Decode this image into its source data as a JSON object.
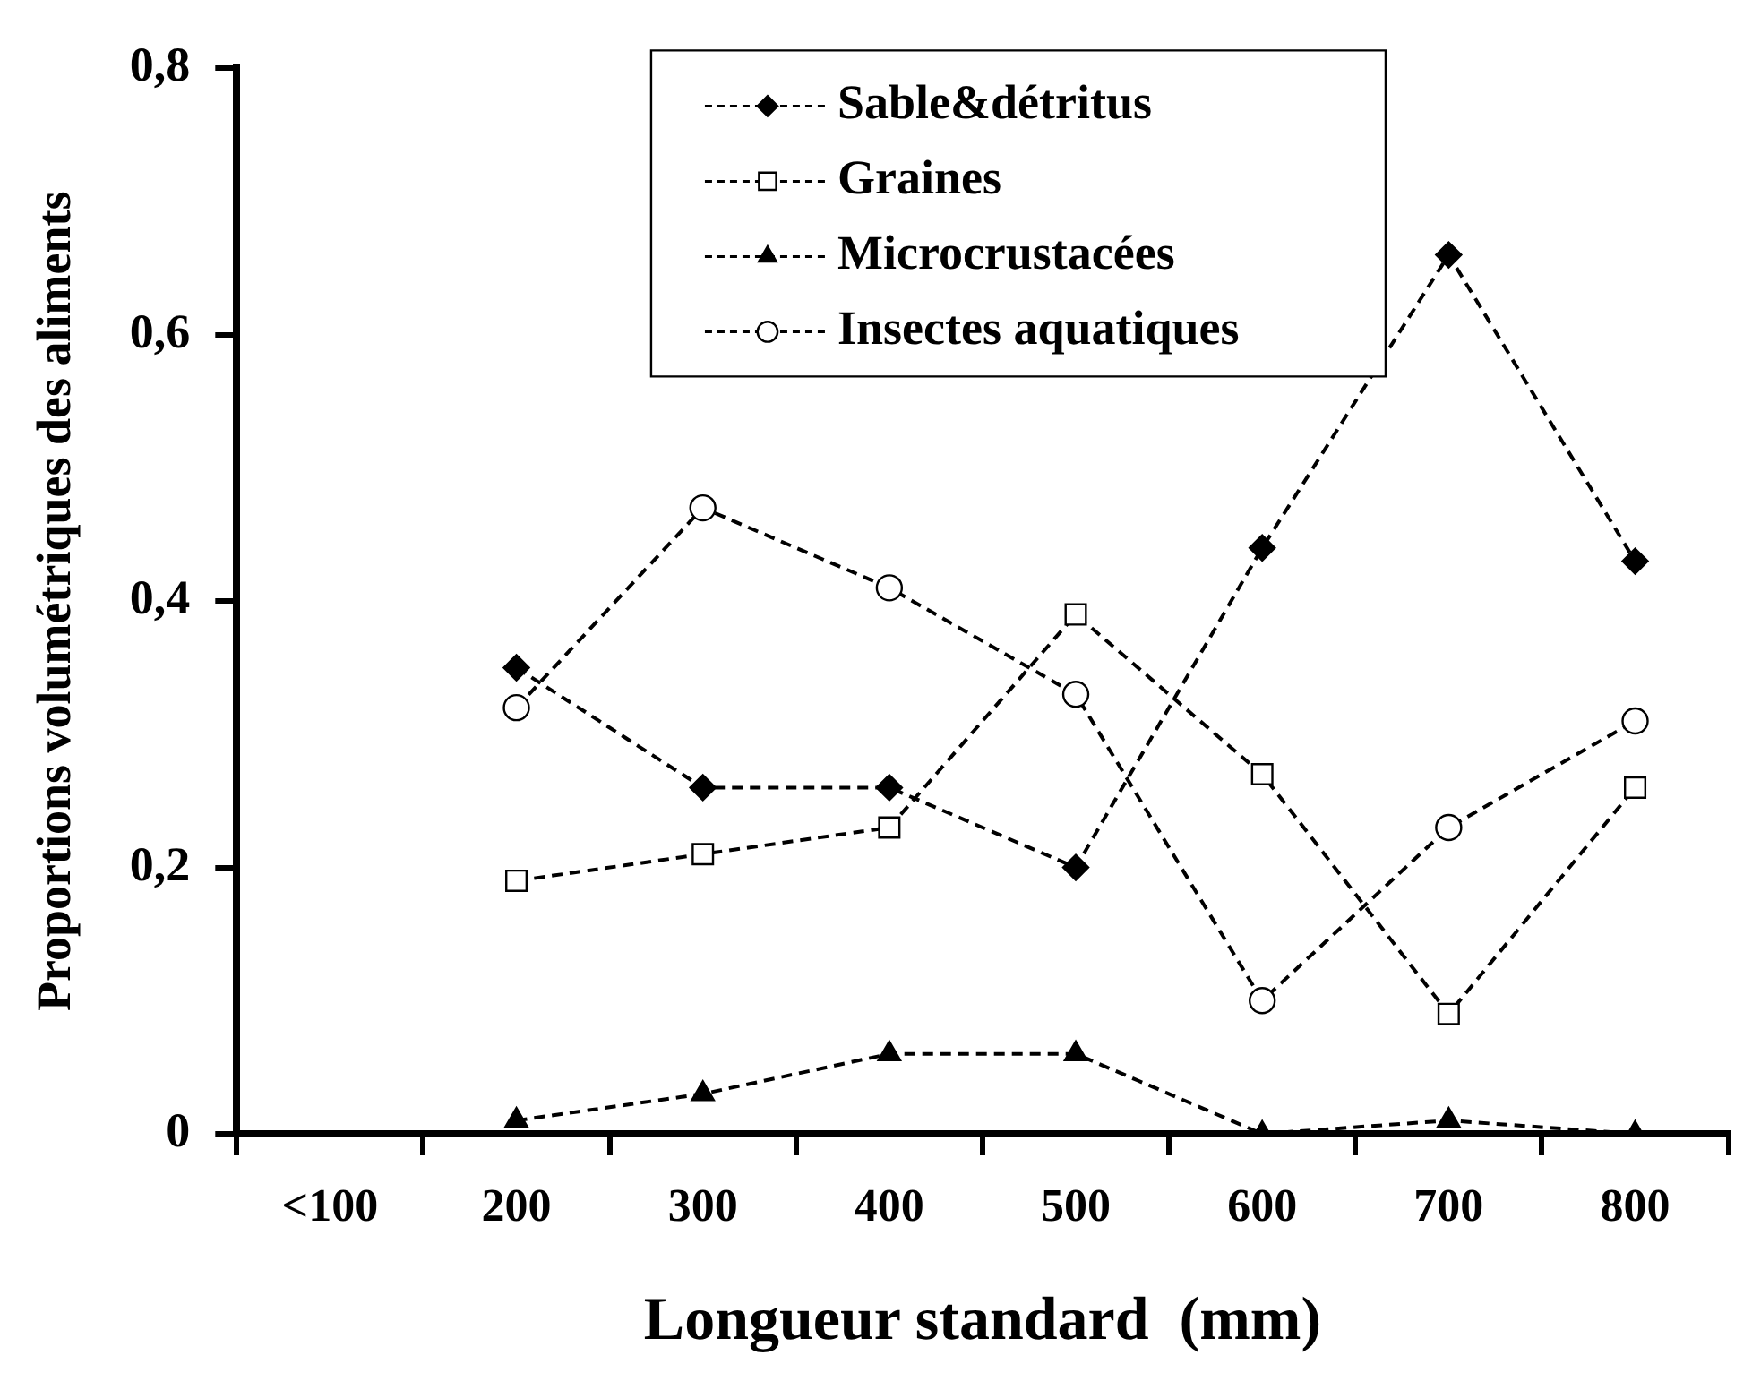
{
  "chart_data": {
    "type": "line",
    "xlabel": "Longueur standard  (mm)",
    "ylabel": "Proportions volumétriques des aliments",
    "categories": [
      "<100",
      "200",
      "300",
      "400",
      "500",
      "600",
      "700",
      "800"
    ],
    "ylim": [
      0,
      0.8
    ],
    "yticks": [
      0,
      {
        "value": 0.2,
        "label": "0,2"
      },
      {
        "value": 0.4,
        "label": "0,4"
      },
      {
        "value": 0.6,
        "label": "0,6"
      },
      {
        "value": 0.8,
        "label": "0,8"
      }
    ],
    "grid": false,
    "legend": "top",
    "line_style": "dashed",
    "series": [
      {
        "name": "Sable&détritus",
        "color": "#000000",
        "marker": "diamond",
        "values": [
          null,
          0.35,
          0.26,
          0.26,
          0.2,
          0.44,
          0.66,
          0.43
        ]
      },
      {
        "name": "Graines",
        "color": "#000000",
        "marker": "square",
        "values": [
          null,
          0.19,
          0.21,
          0.23,
          0.39,
          0.27,
          0.09,
          0.26
        ]
      },
      {
        "name": "Microcrustacées",
        "color": "#000000",
        "marker": "triangle",
        "values": [
          null,
          0.01,
          0.03,
          0.06,
          0.06,
          0.0,
          0.01,
          0.0
        ]
      },
      {
        "name": "Insectes aquatiques",
        "color": "#000000",
        "marker": "circle",
        "values": [
          null,
          0.32,
          0.47,
          0.41,
          0.33,
          0.1,
          0.23,
          0.31
        ]
      }
    ]
  }
}
